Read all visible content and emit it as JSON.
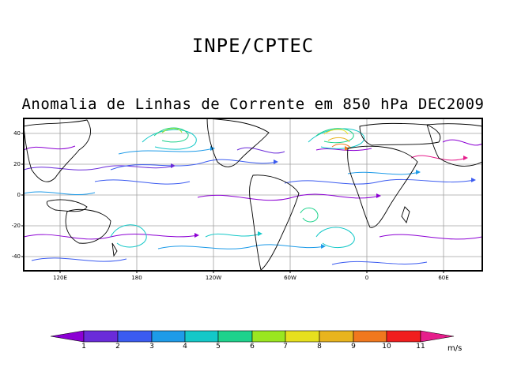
{
  "figure": {
    "title": "INPE/CPTEC",
    "subtitle": "Anomalia de Linhas de Corrente em 850 hPa DEC2009",
    "lat_labels": [
      "40",
      "20",
      "0",
      "-20",
      "-40"
    ],
    "lon_labels": [
      "120E",
      "180",
      "120W",
      "60W",
      "0",
      "60E"
    ],
    "colorbar": {
      "labels": [
        "1",
        "2",
        "3",
        "4",
        "5",
        "6",
        "7",
        "8",
        "9",
        "10",
        "11"
      ],
      "unit": "m/s",
      "colors": [
        "#8c00d4",
        "#6a2bd9",
        "#3b5bf0",
        "#1e9be8",
        "#14c8c8",
        "#1ed28c",
        "#9ae620",
        "#e6e01e",
        "#e8b41e",
        "#f0781e",
        "#f01e1e",
        "#e61e8c"
      ]
    }
  }
}
